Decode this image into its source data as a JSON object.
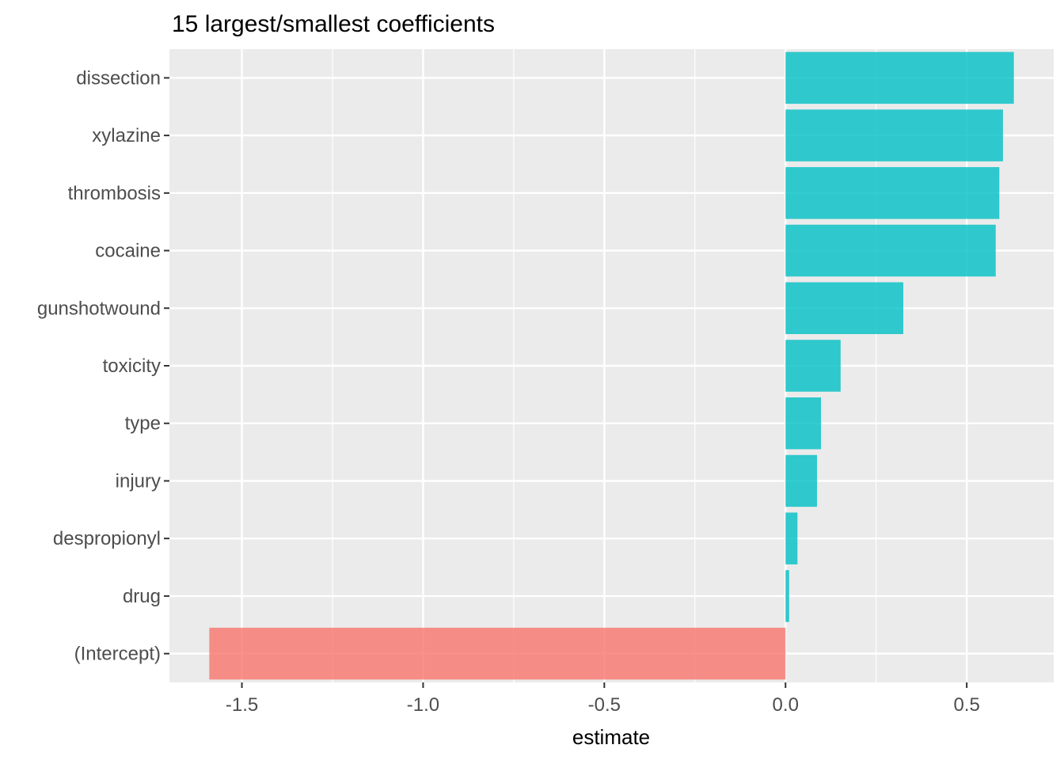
{
  "chart_data": {
    "type": "bar",
    "orientation": "horizontal",
    "title": "15 largest/smallest coefficients",
    "xlabel": "estimate",
    "ylabel": "",
    "categories": [
      "dissection",
      "xylazine",
      "thrombosis",
      "cocaine",
      "gunshotwound",
      "toxicity",
      "type",
      "injury",
      "despropionyl",
      "drug",
      "(Intercept)"
    ],
    "values": [
      0.63,
      0.6,
      0.59,
      0.58,
      0.325,
      0.152,
      0.098,
      0.087,
      0.033,
      0.01,
      -1.59
    ],
    "xlim": [
      -1.7,
      0.74
    ],
    "x_ticks": [
      -1.5,
      -1.0,
      -0.5,
      0.0,
      0.5
    ],
    "x_tick_labels": [
      "-1.5",
      "-1.0",
      "-0.5",
      "0.0",
      "0.5"
    ],
    "colors": {
      "positive": "#00BFC4",
      "negative": "#F8766D",
      "panel": "#EBEBEB",
      "grid": "#FFFFFF"
    },
    "grid": true,
    "legend": "none"
  }
}
